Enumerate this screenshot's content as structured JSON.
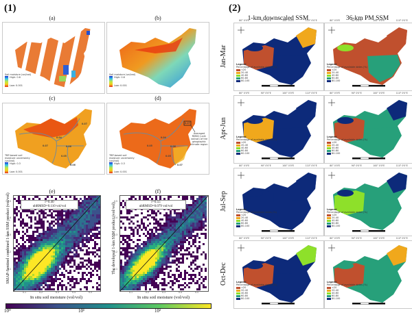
{
  "figure": {
    "part1": {
      "tag": "(1)",
      "subplots": [
        {
          "label": "(a)",
          "legend_title": "Soil moisture (vol/vol)",
          "legend_high": "High: 0.6",
          "legend_low": "Low: 0.001"
        },
        {
          "label": "(b)",
          "legend_title": "Soil moisture (vol/vol)",
          "legend_high": "High: 0.6",
          "legend_low": "Low: 0.001"
        },
        {
          "label": "(c)",
          "legend_title": "TBP-based soil moisture uncertainty (vol/vol)",
          "legend_high": "High: 0.3",
          "legend_low": "Low: 0.001",
          "region_values": [
            "0.04",
            "0.07",
            "0.06",
            "0.05",
            "0.07",
            "0.06"
          ]
        },
        {
          "label": "(d)",
          "legend_title": "TBP-based soil moisture uncertainty (vol/vol)",
          "legend_high": "High: 0.3",
          "legend_low": "Low: 0.001",
          "region_values": [
            "0.04",
            "0.05",
            "0.06",
            "0.05",
            "0.07",
            "0.07"
          ],
          "annotation": "Averaged RMSD (unit: vol/vol) of the geographic climate region"
        },
        {
          "label": "(e)",
          "stat_r": "r=0.40",
          "stat_ubrmsd": "ubRMSD=0.110 vol/vol",
          "ylabel": "SMAP-Sentinel combined 1-km SSM product (vol/vol)",
          "xlabel": "In situ soil moisture (vol/vol)"
        },
        {
          "label": "(f)",
          "stat_r": "r=0.55",
          "stat_ubrmsd": "ubRMSD=0.079 vol/vol",
          "ylabel": "The developed 1-km SSM product (vol/vol)",
          "xlabel": "In situ soil moisture (vol/vol)"
        }
      ],
      "colorbar": {
        "tick_labels": [
          "10⁰",
          "10¹",
          "10²"
        ]
      }
    },
    "part2": {
      "tag": "(2)",
      "column_titles": [
        "1-km downscaled SSM",
        "36-km PM SSM"
      ],
      "row_labels": [
        "Jan-Mar",
        "Apr-Jun",
        "Jul-Sep",
        "Oct-Dec"
      ],
      "legend": {
        "title": "Legend",
        "subtitle": "Percentage of available dates (%)",
        "classes": [
          {
            "label": "<20",
            "color": "#c0502e"
          },
          {
            "label": "20-40",
            "color": "#f0a81c"
          },
          {
            "label": "40-60",
            "color": "#8ee02a"
          },
          {
            "label": "60-80",
            "color": "#27a07a"
          },
          {
            "label": "80-100",
            "color": "#0d2a7a"
          }
        ]
      },
      "lon_ticks": [
        "80° 0'0\"E",
        "90° 0'0\"E",
        "100° 0'0\"E",
        "110° 0'0\"E"
      ],
      "lat_ticks": [
        "40° 0'0\"N",
        "30° 0'0\"N",
        "20° 0'0\"N"
      ],
      "scale_bar": [
        "0",
        "500",
        "1,000",
        "2,000",
        "Km"
      ]
    }
  },
  "chart_data": [
    {
      "type": "heatmap",
      "title": "(e)",
      "xlabel": "In situ soil moisture (vol/vol)",
      "ylabel": "SMAP-Sentinel combined 1-km SSM product (vol/vol)",
      "x_ticks": [
        "0.1",
        "0.2",
        "0.3",
        "0.4",
        "0.5"
      ],
      "y_ticks": [
        "0.1",
        "0.2",
        "0.3",
        "0.4",
        "0.5"
      ],
      "xlim": [
        0,
        0.55
      ],
      "ylim": [
        0,
        0.55
      ],
      "annotations": [
        "r=0.40",
        "ubRMSD=0.110 vol/vol"
      ],
      "reference_line": "1:1",
      "colorscale": "viridis (log)",
      "colorbar_range": [
        1,
        500
      ]
    },
    {
      "type": "heatmap",
      "title": "(f)",
      "xlabel": "In situ soil moisture (vol/vol)",
      "ylabel": "The developed 1-km SSM product (vol/vol)",
      "x_ticks": [
        "0.1",
        "0.2",
        "0.3",
        "0.4",
        "0.5"
      ],
      "y_ticks": [
        "0.1",
        "0.2",
        "0.3",
        "0.4",
        "0.5"
      ],
      "xlim": [
        0,
        0.55
      ],
      "ylim": [
        0,
        0.55
      ],
      "annotations": [
        "r=0.55",
        "ubRMSD=0.079 vol/vol"
      ],
      "reference_line": "1:1",
      "colorscale": "viridis (log)",
      "colorbar_range": [
        1,
        500
      ]
    }
  ]
}
